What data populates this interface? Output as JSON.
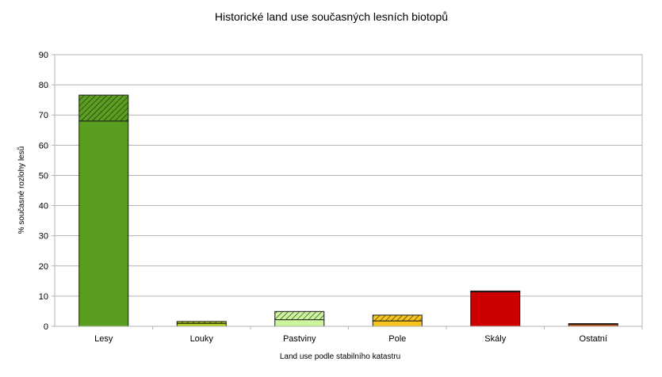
{
  "chart_data": {
    "type": "bar",
    "stacked": true,
    "title": "Historické land use současných lesních biotopů",
    "xlabel": "Land use podle stabilního katastru",
    "ylabel": "% současné rozlohy lesů",
    "ylim": [
      0,
      90
    ],
    "yticks": [
      0,
      10,
      20,
      30,
      40,
      50,
      60,
      70,
      80,
      90
    ],
    "grid": true,
    "legend": "none",
    "categories": [
      "Lesy",
      "Louky",
      "Pastviny",
      "Pole",
      "Skály",
      "Ostatní"
    ],
    "series": [
      {
        "pattern": "solid",
        "values": [
          68.0,
          1.0,
          2.2,
          1.8,
          11.4,
          0.6
        ]
      },
      {
        "pattern": "hatched",
        "values": [
          8.6,
          0.6,
          2.7,
          1.9,
          0.3,
          0.3
        ]
      }
    ],
    "colors": [
      "#5a9e1f",
      "#b5cf1d",
      "#ccf59b",
      "#f7c51d",
      "#cc0000",
      "#e55a10"
    ]
  }
}
